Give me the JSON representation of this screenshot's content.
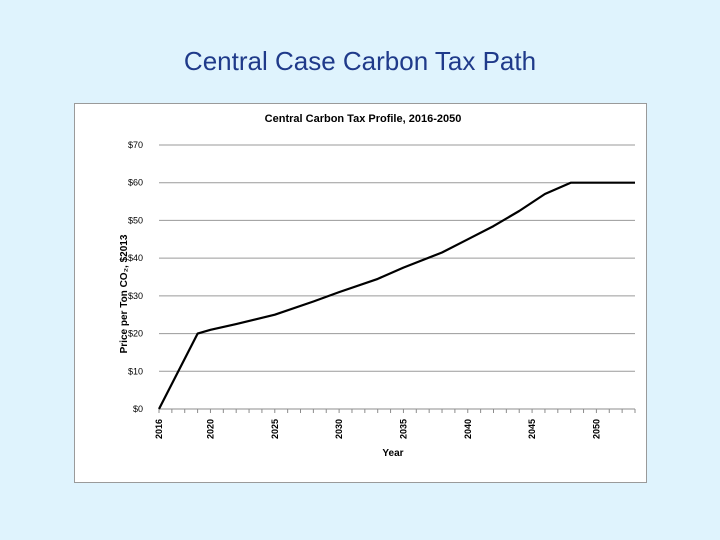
{
  "slide": {
    "title": "Central Case Carbon Tax Path"
  },
  "chart_data": {
    "type": "line",
    "title": "Central Carbon Tax Profile, 2016-2050",
    "xlabel": "Year",
    "ylabel": "Price per Ton CO₂, $2013",
    "xlim": [
      2016,
      2053
    ],
    "ylim": [
      0,
      70
    ],
    "yticks": [
      0,
      10,
      20,
      30,
      40,
      50,
      60,
      70
    ],
    "ytick_labels": [
      "$0",
      "$10",
      "$20",
      "$30",
      "$40",
      "$50",
      "$60",
      "$70"
    ],
    "xticks": [
      2016,
      2020,
      2025,
      2030,
      2035,
      2040,
      2045,
      2050
    ],
    "grid": true,
    "legend": "none",
    "line_color": "#000000",
    "series": [
      {
        "x": [
          2016,
          2019,
          2020,
          2022,
          2025,
          2028,
          2030,
          2033,
          2035,
          2038,
          2040,
          2042,
          2044,
          2046,
          2048,
          2050,
          2053
        ],
        "y": [
          0,
          20,
          21,
          22.5,
          25,
          28.5,
          31,
          34.5,
          37.5,
          41.5,
          45,
          48.5,
          52.5,
          57,
          60,
          60,
          60
        ]
      }
    ]
  }
}
